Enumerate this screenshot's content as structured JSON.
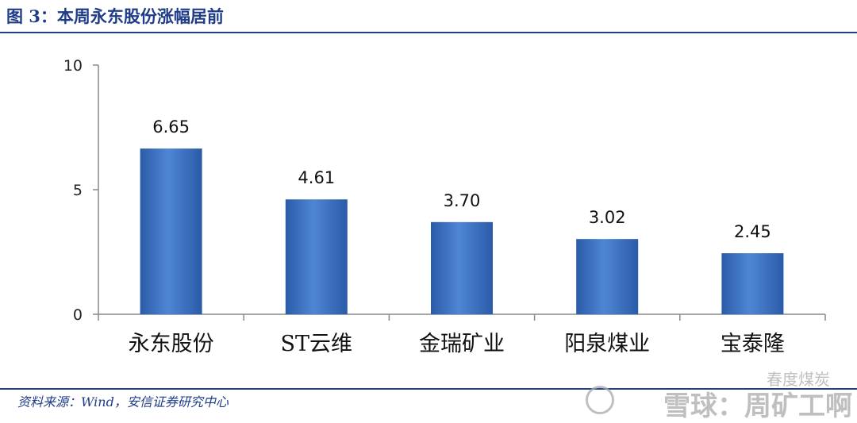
{
  "figure": {
    "title": "图 3：本周永东股份涨幅居前",
    "source": "资料来源：Wind，安信证券研究中心"
  },
  "watermark": {
    "channel": "春度煤炭",
    "text": "雪球：周矿工啊"
  },
  "colors": {
    "accent": "#1f3c88",
    "bar_light": "#4f86d4",
    "bar_dark": "#2a5ba8"
  },
  "chart_data": {
    "type": "bar",
    "title": "",
    "xlabel": "",
    "ylabel": "",
    "categories": [
      "永东股份",
      "ST云维",
      "金瑞矿业",
      "阳泉煤业",
      "宝泰隆"
    ],
    "values": [
      6.65,
      4.61,
      3.7,
      3.02,
      2.45
    ],
    "value_labels": [
      "6.65",
      "4.61",
      "3.70",
      "3.02",
      "2.45"
    ],
    "ylim": [
      0,
      10
    ],
    "yticks": [
      0,
      5,
      10
    ],
    "grid": false,
    "legend": "none"
  }
}
